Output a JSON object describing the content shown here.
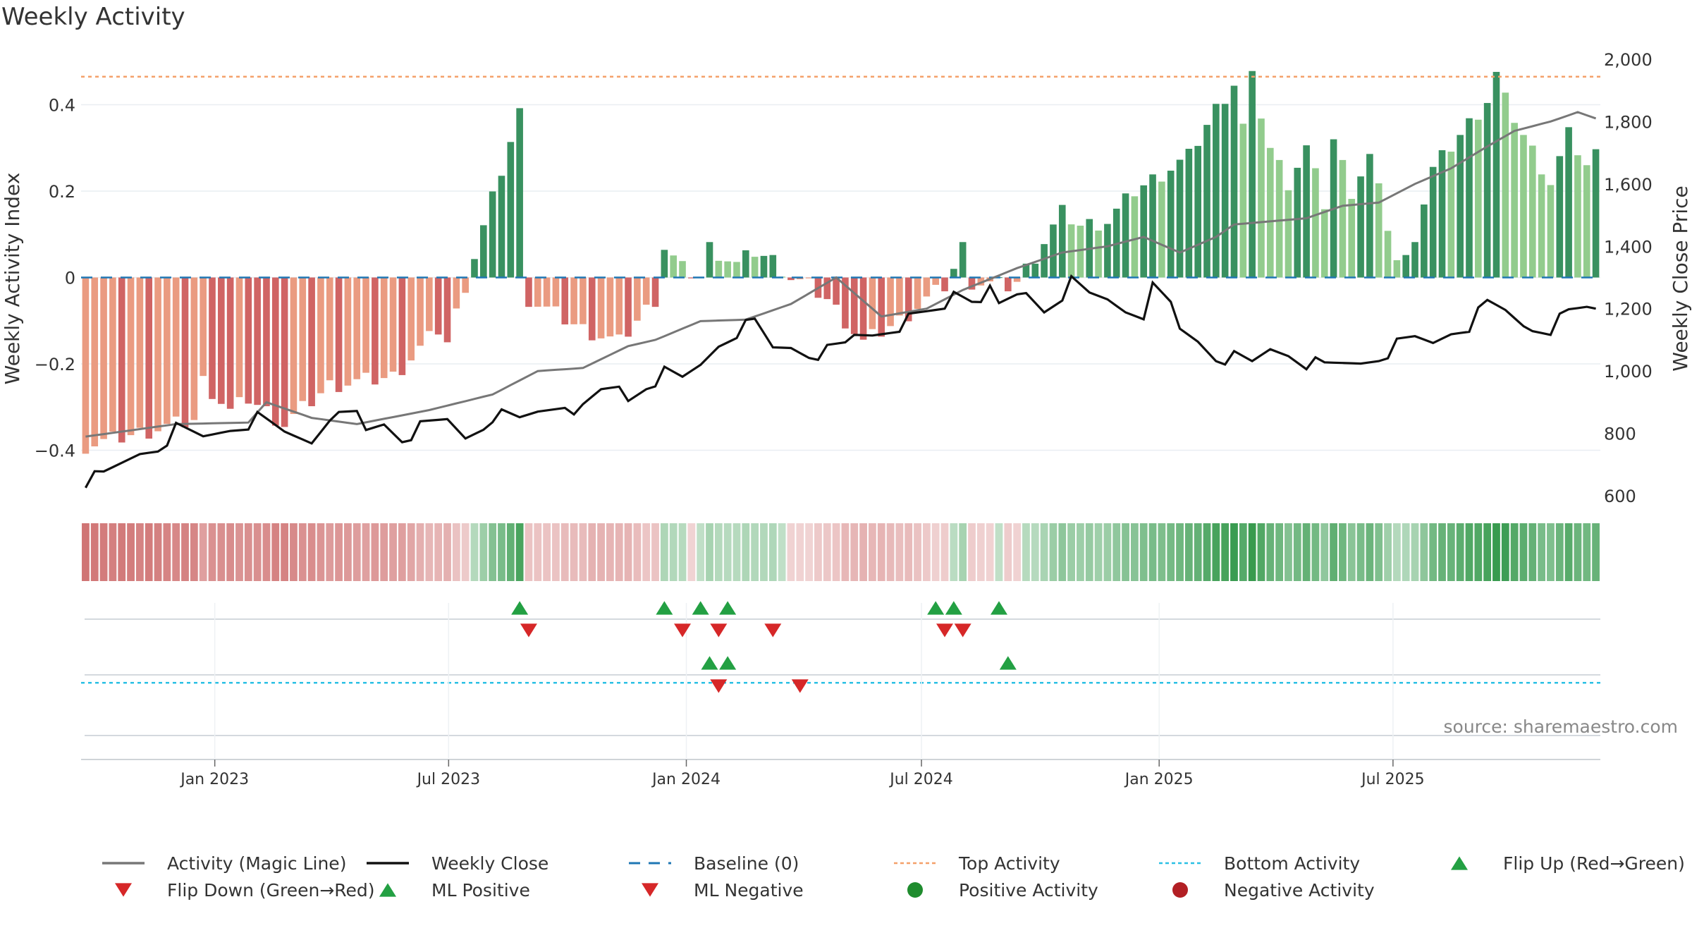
{
  "chart_data": {
    "type": "bar",
    "title": "Weekly Activity",
    "ylabel": "Weekly Activity Index",
    "y2label": "Weekly Close Price",
    "ylim": [
      -0.52,
      0.52
    ],
    "y2lim": [
      580,
      2020
    ],
    "yticks": [
      {
        "v": -0.4,
        "label": "−0.4"
      },
      {
        "v": -0.2,
        "label": "−0.2"
      },
      {
        "v": 0,
        "label": "0"
      },
      {
        "v": 0.2,
        "label": "0.2"
      },
      {
        "v": 0.4,
        "label": "0.4"
      }
    ],
    "y2ticks": [
      {
        "v": 600,
        "label": "600"
      },
      {
        "v": 800,
        "label": "800"
      },
      {
        "v": 1000,
        "label": "1,000"
      },
      {
        "v": 1200,
        "label": "1,200"
      },
      {
        "v": 1400,
        "label": "1,400"
      },
      {
        "v": 1600,
        "label": "1,600"
      },
      {
        "v": 1800,
        "label": "1,800"
      },
      {
        "v": 2000,
        "label": "2,000"
      }
    ],
    "x_start": "2022-09-23",
    "weeks": 158,
    "xticks": [
      {
        "date": "2023-01-01",
        "label": "Jan 2023"
      },
      {
        "date": "2023-07-01",
        "label": "Jul 2023"
      },
      {
        "date": "2024-01-01",
        "label": "Jan 2024"
      },
      {
        "date": "2024-07-01",
        "label": "Jul 2024"
      },
      {
        "date": "2025-01-01",
        "label": "Jan 2025"
      },
      {
        "date": "2025-07-01",
        "label": "Jul 2025"
      }
    ],
    "top_activity": 0.465,
    "bottom_activity": 0.79,
    "activity_anchors": [
      [
        0,
        -0.39
      ],
      [
        8,
        -0.35
      ],
      [
        12,
        -0.33
      ],
      [
        13,
        -0.24
      ],
      [
        16,
        -0.31
      ],
      [
        18,
        -0.28
      ],
      [
        22,
        -0.34
      ],
      [
        27,
        -0.25
      ],
      [
        34,
        -0.23
      ],
      [
        39,
        -0.12
      ],
      [
        40,
        -0.15
      ],
      [
        48,
        0.38
      ],
      [
        49,
        -0.05
      ],
      [
        55,
        -0.12
      ],
      [
        59,
        -0.15
      ],
      [
        63,
        -0.05
      ],
      [
        64,
        0.07
      ],
      [
        66,
        0.02
      ],
      [
        68,
        0.0
      ],
      [
        69,
        0.07
      ],
      [
        72,
        0.03
      ],
      [
        74,
        0.06
      ],
      [
        76,
        0.04
      ],
      [
        78,
        0.0
      ],
      [
        80,
        -0.02
      ],
      [
        82,
        -0.05
      ],
      [
        86,
        -0.15
      ],
      [
        90,
        -0.1
      ],
      [
        93,
        -0.05
      ],
      [
        95,
        -0.02
      ],
      [
        96,
        0.02
      ],
      [
        97,
        0.07
      ],
      [
        98,
        -0.01
      ],
      [
        102,
        -0.02
      ],
      [
        103,
        -0.01
      ],
      [
        105,
        0.05
      ],
      [
        108,
        0.15
      ],
      [
        110,
        0.12
      ],
      [
        113,
        0.13
      ],
      [
        116,
        0.2
      ],
      [
        119,
        0.24
      ],
      [
        122,
        0.28
      ],
      [
        125,
        0.39
      ],
      [
        127,
        0.45
      ],
      [
        128,
        0.35
      ],
      [
        129,
        0.46
      ],
      [
        131,
        0.3
      ],
      [
        133,
        0.22
      ],
      [
        135,
        0.3
      ],
      [
        137,
        0.17
      ],
      [
        138,
        0.32
      ],
      [
        140,
        0.2
      ],
      [
        142,
        0.28
      ],
      [
        145,
        0.04
      ],
      [
        146,
        0.04
      ],
      [
        147,
        0.1
      ],
      [
        149,
        0.25
      ],
      [
        152,
        0.33
      ],
      [
        155,
        0.41
      ],
      [
        156,
        0.47
      ],
      [
        157,
        0.41
      ],
      [
        159,
        0.33
      ],
      [
        162,
        0.22
      ],
      [
        164,
        0.33
      ],
      [
        166,
        0.26
      ],
      [
        168,
        0.31
      ]
    ],
    "close_anchors": [
      [
        0,
        650
      ],
      [
        2,
        660
      ],
      [
        4,
        700
      ],
      [
        6,
        740
      ],
      [
        8,
        760
      ],
      [
        10,
        810
      ],
      [
        13,
        785
      ],
      [
        16,
        820
      ],
      [
        19,
        845
      ],
      [
        22,
        800
      ],
      [
        25,
        780
      ],
      [
        27,
        865
      ],
      [
        28,
        845
      ],
      [
        30,
        860
      ],
      [
        31,
        805
      ],
      [
        33,
        835
      ],
      [
        35,
        790
      ],
      [
        37,
        815
      ],
      [
        40,
        840
      ],
      [
        42,
        790
      ],
      [
        44,
        830
      ],
      [
        45,
        860
      ],
      [
        48,
        840
      ],
      [
        50,
        870
      ],
      [
        53,
        900
      ],
      [
        55,
        870
      ],
      [
        57,
        930
      ],
      [
        59,
        950
      ],
      [
        60,
        910
      ],
      [
        62,
        960
      ],
      [
        64,
        990
      ],
      [
        66,
        970
      ],
      [
        68,
        1020
      ],
      [
        70,
        1090
      ],
      [
        72,
        1130
      ],
      [
        74,
        1150
      ],
      [
        76,
        1070
      ],
      [
        78,
        1080
      ],
      [
        80,
        1060
      ],
      [
        82,
        1060
      ],
      [
        84,
        1080
      ],
      [
        85,
        1110
      ],
      [
        87,
        1120
      ],
      [
        89,
        1140
      ],
      [
        91,
        1160
      ],
      [
        93,
        1180
      ],
      [
        95,
        1200
      ],
      [
        96,
        1260
      ],
      [
        98,
        1240
      ],
      [
        100,
        1250
      ],
      [
        101,
        1200
      ],
      [
        103,
        1240
      ],
      [
        104,
        1250
      ],
      [
        106,
        1200
      ],
      [
        108,
        1250
      ],
      [
        109,
        1280
      ],
      [
        111,
        1240
      ],
      [
        113,
        1230
      ],
      [
        115,
        1200
      ],
      [
        117,
        1190
      ],
      [
        118,
        1260
      ],
      [
        120,
        1210
      ],
      [
        121,
        1130
      ],
      [
        123,
        1100
      ],
      [
        125,
        1050
      ],
      [
        127,
        1040
      ],
      [
        129,
        1020
      ],
      [
        131,
        1070
      ],
      [
        133,
        1060
      ],
      [
        135,
        1030
      ],
      [
        137,
        1010
      ],
      [
        139,
        1020
      ],
      [
        141,
        1030
      ],
      [
        143,
        1050
      ],
      [
        145,
        1080
      ],
      [
        147,
        1100
      ],
      [
        149,
        1090
      ],
      [
        151,
        1130
      ],
      [
        153,
        1150
      ],
      [
        155,
        1210
      ],
      [
        157,
        1190
      ],
      [
        159,
        1150
      ],
      [
        160,
        1140
      ],
      [
        162,
        1140
      ],
      [
        164,
        1180
      ],
      [
        166,
        1200
      ],
      [
        168,
        1200
      ]
    ],
    "magic_anchors": [
      [
        0,
        790
      ],
      [
        10,
        830
      ],
      [
        18,
        835
      ],
      [
        20,
        900
      ],
      [
        25,
        850
      ],
      [
        30,
        830
      ],
      [
        38,
        875
      ],
      [
        45,
        925
      ],
      [
        50,
        1000
      ],
      [
        55,
        1010
      ],
      [
        60,
        1080
      ],
      [
        63,
        1100
      ],
      [
        68,
        1160
      ],
      [
        73,
        1165
      ],
      [
        78,
        1215
      ],
      [
        83,
        1300
      ],
      [
        88,
        1175
      ],
      [
        93,
        1200
      ],
      [
        97,
        1260
      ],
      [
        103,
        1330
      ],
      [
        108,
        1380
      ],
      [
        113,
        1400
      ],
      [
        117,
        1430
      ],
      [
        121,
        1380
      ],
      [
        125,
        1430
      ],
      [
        127,
        1470
      ],
      [
        131,
        1480
      ],
      [
        135,
        1490
      ],
      [
        139,
        1530
      ],
      [
        143,
        1540
      ],
      [
        147,
        1600
      ],
      [
        151,
        1650
      ],
      [
        155,
        1720
      ],
      [
        158,
        1770
      ],
      [
        162,
        1800
      ],
      [
        165,
        1830
      ],
      [
        168,
        1800
      ]
    ],
    "flip_up": [
      48,
      64,
      68,
      71,
      94,
      96,
      101
    ],
    "flip_down": [
      49,
      66,
      70,
      76,
      95,
      97
    ],
    "ml_positive": [
      69,
      71,
      102
    ],
    "ml_negative": [
      70,
      79
    ],
    "positive_activity": [],
    "negative_activity": [],
    "source": "source: sharemaestro.com",
    "legend": [
      {
        "label": "Activity (Magic Line)",
        "kind": "line",
        "color": "#777777"
      },
      {
        "label": "Weekly Close",
        "kind": "line",
        "color": "#111111"
      },
      {
        "label": "Baseline (0)",
        "kind": "dash",
        "color": "#1f77b4"
      },
      {
        "label": "Top Activity",
        "kind": "dot",
        "color": "#f4a06a"
      },
      {
        "label": "Bottom Activity",
        "kind": "dot",
        "color": "#2bc0e4"
      },
      {
        "label": "Flip Up (Red→Green)",
        "kind": "tri-up",
        "color": "#23a043"
      },
      {
        "label": "Flip Down (Green→Red)",
        "kind": "tri-down",
        "color": "#d62728"
      },
      {
        "label": "ML Positive",
        "kind": "tri-up",
        "color": "#23a043"
      },
      {
        "label": "ML Negative",
        "kind": "tri-down",
        "color": "#d62728"
      },
      {
        "label": "Positive Activity",
        "kind": "circle",
        "color": "#1f8c2e"
      },
      {
        "label": "Negative Activity",
        "kind": "circle",
        "color": "#b21f24"
      }
    ],
    "colors": {
      "pos_dark": "#2e8b57",
      "pos_light": "#8cc987",
      "neg_dark": "#cd5c5c",
      "neg_light": "#e9967a",
      "grid": "#e9eef2"
    }
  }
}
